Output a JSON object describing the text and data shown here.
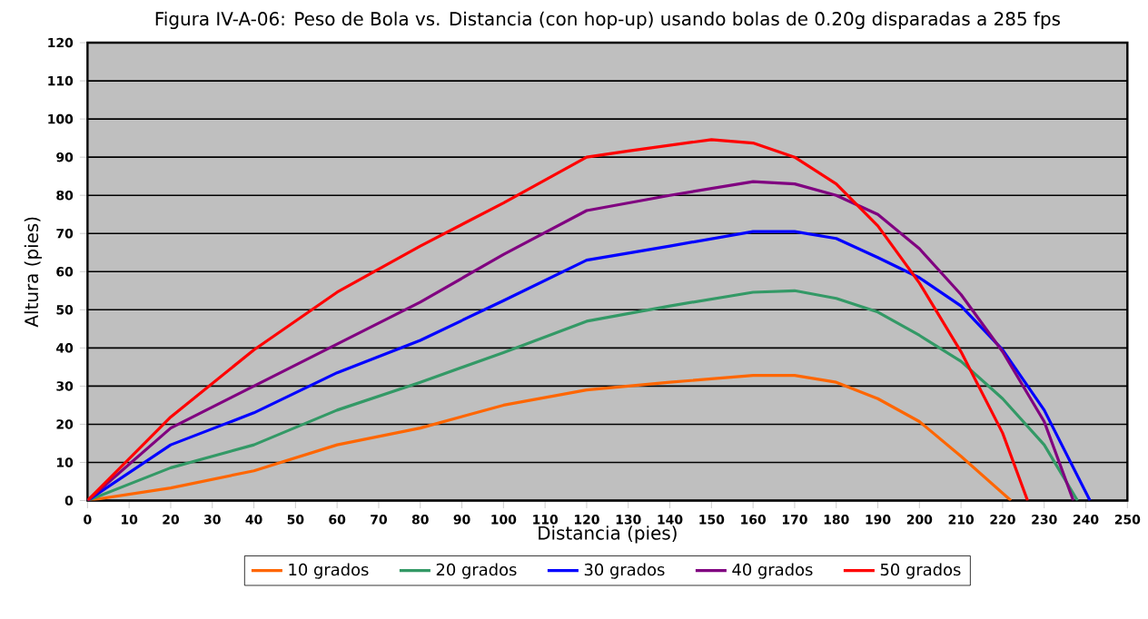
{
  "chart_data": {
    "type": "line",
    "title": "Figura IV-A-06: Peso de Bola vs. Distancia (con hop-up) usando bolas de 0.20g disparadas a 285 fps",
    "xlabel": "Distancia (pies)",
    "ylabel": "Altura (pies)",
    "xlim": [
      0,
      250
    ],
    "xticks": [
      0,
      10,
      20,
      30,
      40,
      50,
      60,
      70,
      80,
      90,
      100,
      110,
      120,
      130,
      140,
      150,
      160,
      170,
      180,
      190,
      200,
      210,
      220,
      230,
      240,
      250
    ],
    "ylim": [
      0,
      120
    ],
    "yticks": [
      0,
      10,
      20,
      30,
      40,
      50,
      60,
      70,
      80,
      90,
      100,
      110,
      120
    ],
    "grid": "y",
    "legend": "bottom",
    "marker": "none",
    "line_style": "solid",
    "series": [
      {
        "name": "10 grados",
        "color": "#ff6600",
        "x": [
          0,
          20,
          40,
          60,
          80,
          100,
          120,
          140,
          160,
          170,
          180,
          190,
          200,
          210,
          222
        ],
        "values": [
          0,
          3.3,
          7.8,
          14.6,
          19,
          25,
          29,
          31,
          32.8,
          32.8,
          31,
          26.7,
          20.7,
          11.6,
          0
        ]
      },
      {
        "name": "20 grados",
        "color": "#339966",
        "x": [
          0,
          20,
          40,
          60,
          80,
          100,
          120,
          140,
          160,
          170,
          180,
          190,
          200,
          210,
          220,
          230,
          238
        ],
        "values": [
          0,
          8.6,
          14.6,
          23.7,
          31,
          38.8,
          47,
          51,
          54.6,
          55,
          53,
          49.4,
          43.3,
          36.5,
          26.7,
          14.6,
          0
        ]
      },
      {
        "name": "30 grados",
        "color": "#0000ff",
        "x": [
          0,
          20,
          40,
          60,
          80,
          100,
          120,
          140,
          160,
          170,
          180,
          190,
          200,
          210,
          220,
          230,
          241
        ],
        "values": [
          0,
          14.6,
          23,
          33.5,
          42,
          52.4,
          63,
          66.7,
          70.5,
          70.5,
          68.7,
          63.7,
          58.4,
          51,
          39.5,
          23.7,
          0
        ]
      },
      {
        "name": "40 grados",
        "color": "#800080",
        "x": [
          0,
          20,
          40,
          60,
          80,
          100,
          120,
          140,
          160,
          170,
          180,
          190,
          200,
          210,
          220,
          230,
          237
        ],
        "values": [
          0,
          19,
          30,
          41,
          52,
          64.5,
          76,
          80,
          83.6,
          83,
          80,
          75,
          66,
          54,
          39,
          20.7,
          0
        ]
      },
      {
        "name": "50 grados",
        "color": "#ff0000",
        "x": [
          0,
          20,
          40,
          60,
          80,
          100,
          120,
          130,
          150,
          160,
          170,
          180,
          190,
          200,
          210,
          220,
          226
        ],
        "values": [
          0,
          21.9,
          39.5,
          54.6,
          66.7,
          78,
          90,
          91.6,
          94.6,
          93.7,
          90,
          83,
          72,
          57,
          39,
          17.7,
          0
        ]
      }
    ]
  }
}
